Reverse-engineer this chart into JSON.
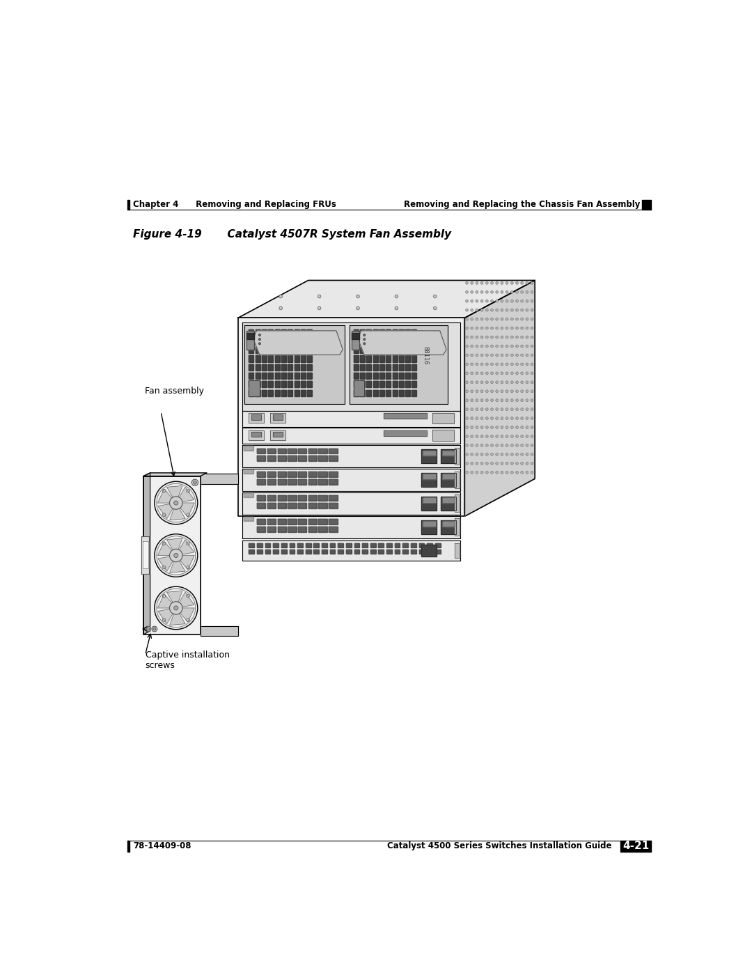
{
  "bg_color": "#ffffff",
  "header_left_bar_color": "#000000",
  "header_left_text": "Chapter 4      Removing and Replacing FRUs",
  "header_right_text": "Removing and Replacing the Chassis Fan Assembly",
  "header_right_square_color": "#000000",
  "figure_title": "Figure 4-19       Catalyst 4507R System Fan Assembly",
  "label_fan_assembly": "Fan assembly",
  "label_captive": "Captive installation\nscrews",
  "footer_left_bar_color": "#000000",
  "footer_left_text": "78-14409-08",
  "footer_right_text": "Catalyst 4500 Series Switches Installation Guide",
  "footer_page_bg": "#000000",
  "footer_page_text": "4-21",
  "header_line_color": "#000000",
  "footer_line_color": "#000000",
  "serial_text": "88116"
}
